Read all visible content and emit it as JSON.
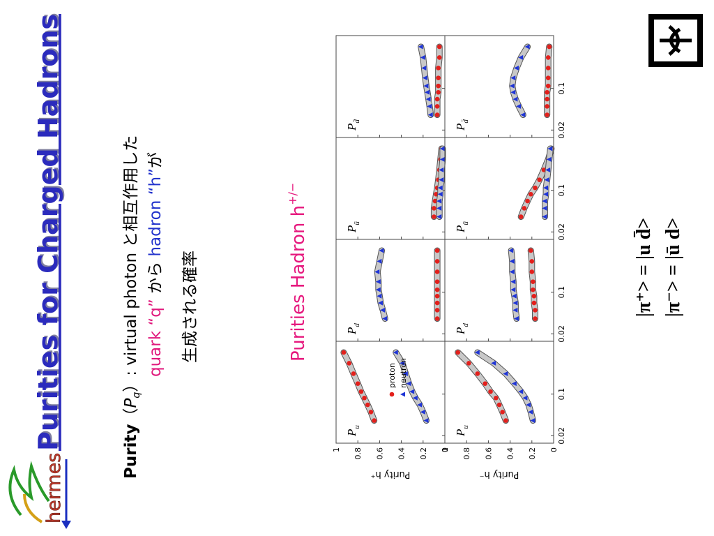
{
  "logo": "hermes",
  "title": "Purities for Charged Hadrons",
  "definition": {
    "term": "Purity",
    "open": "（",
    "symbol": "P",
    "symbol_sub": "q",
    "rest": "）: virtual photon  と相互作用した",
    "quark": "quark “q”",
    "from": " から ",
    "hadron": "hadron “h”",
    "ga": "が",
    "line3": "生成される確率"
  },
  "figure_title": {
    "text": "Purities Hadron h",
    "sup": "+/−"
  },
  "chart_data": {
    "type": "line",
    "log_x": true,
    "x": [
      0.036,
      0.05,
      0.066,
      0.086,
      0.11,
      0.15,
      0.22,
      0.33,
      0.5
    ],
    "xlim": [
      0.015,
      0.77
    ],
    "xticks": [
      0.02,
      0.1
    ],
    "ylim": [
      0,
      1
    ],
    "yticks": [
      0,
      0.2,
      0.4,
      0.6,
      0.8,
      1
    ],
    "band_color": "#c8c8c8",
    "series": [
      {
        "name": "proton",
        "color": "#e3201c",
        "marker": "circle"
      },
      {
        "name": "neutron",
        "color": "#1f35d6",
        "marker": "triangle"
      }
    ],
    "rows": [
      {
        "ylabel": "Purity h⁺",
        "panels": [
          {
            "label": "P",
            "sub": "u",
            "values": [
              [
                0.65,
                0.68,
                0.71,
                0.74,
                0.77,
                0.8,
                0.84,
                0.88,
                0.93
              ],
              [
                0.17,
                0.2,
                0.23,
                0.27,
                0.3,
                0.33,
                0.36,
                0.39,
                0.45
              ]
            ]
          },
          {
            "label": "P",
            "sub": "d",
            "values": [
              [
                0.07,
                0.07,
                0.07,
                0.07,
                0.07,
                0.07,
                0.07,
                0.07,
                0.07
              ],
              [
                0.55,
                0.57,
                0.59,
                0.6,
                0.61,
                0.61,
                0.62,
                0.6,
                0.58
              ]
            ]
          },
          {
            "label": "P",
            "sub": "ū",
            "values": [
              [
                0.1,
                0.1,
                0.09,
                0.08,
                0.07,
                0.06,
                0.05,
                0.04,
                0.03
              ],
              [
                0.05,
                0.05,
                0.05,
                0.04,
                0.04,
                0.03,
                0.03,
                0.02,
                0.02
              ]
            ]
          },
          {
            "label": "P",
            "sub": "d̄",
            "values": [
              [
                0.07,
                0.07,
                0.07,
                0.06,
                0.06,
                0.06,
                0.06,
                0.05,
                0.05
              ],
              [
                0.13,
                0.14,
                0.15,
                0.16,
                0.17,
                0.18,
                0.19,
                0.2,
                0.22
              ]
            ]
          }
        ]
      },
      {
        "ylabel": "Purity h⁻",
        "panels": [
          {
            "label": "P",
            "sub": "u",
            "values": [
              [
                0.44,
                0.47,
                0.5,
                0.53,
                0.58,
                0.63,
                0.7,
                0.78,
                0.88
              ],
              [
                0.19,
                0.21,
                0.23,
                0.26,
                0.3,
                0.36,
                0.44,
                0.55,
                0.7
              ]
            ]
          },
          {
            "label": "P",
            "sub": "d",
            "values": [
              [
                0.17,
                0.17,
                0.18,
                0.18,
                0.19,
                0.19,
                0.2,
                0.2,
                0.21
              ],
              [
                0.34,
                0.35,
                0.35,
                0.36,
                0.37,
                0.37,
                0.38,
                0.38,
                0.39
              ]
            ]
          },
          {
            "label": "P",
            "sub": "ū",
            "values": [
              [
                0.3,
                0.27,
                0.24,
                0.21,
                0.17,
                0.13,
                0.09,
                0.05,
                0.02
              ],
              [
                0.08,
                0.08,
                0.08,
                0.07,
                0.07,
                0.06,
                0.05,
                0.04,
                0.03
              ]
            ]
          },
          {
            "label": "P",
            "sub": "d̄",
            "values": [
              [
                0.06,
                0.06,
                0.06,
                0.06,
                0.05,
                0.05,
                0.05,
                0.05,
                0.04
              ],
              [
                0.28,
                0.32,
                0.35,
                0.37,
                0.38,
                0.37,
                0.34,
                0.3,
                0.24
              ]
            ]
          }
        ]
      }
    ]
  },
  "formulas": [
    "|π⁺> = |u d̄>",
    "|π⁻> = |ū d>"
  ]
}
